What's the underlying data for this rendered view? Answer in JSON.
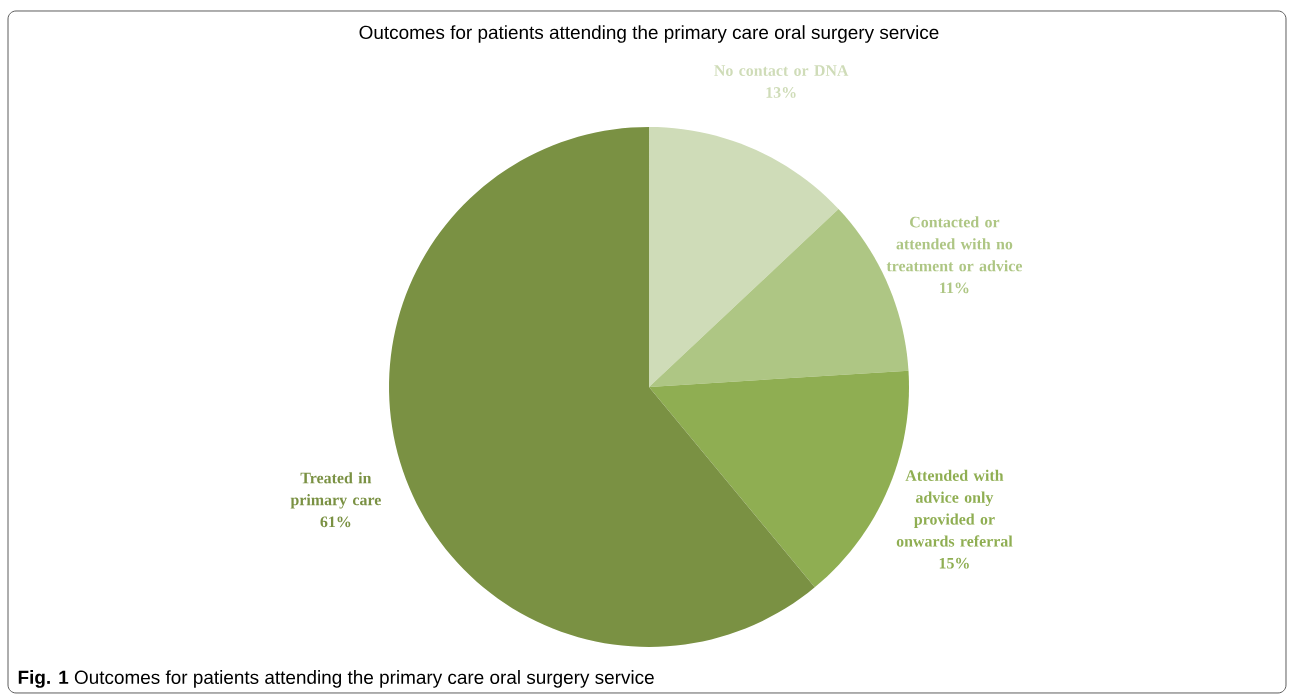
{
  "chart_data": {
    "type": "pie",
    "title": "Outcomes for patients attending the primary care oral surgery service",
    "categories": [
      "No contact or DNA",
      "Contacted or attended with no treatment or advice",
      "Attended with advice only provided or onwards referral",
      "Treated in primary care"
    ],
    "values": [
      13,
      11,
      15,
      61
    ],
    "value_labels": [
      "13%",
      "11%",
      "15%",
      "61%"
    ],
    "colors": [
      "#cfdcb8",
      "#aec684",
      "#8fae52",
      "#7a9143"
    ],
    "annotations": [
      "**Fig. 1** Outcomes for patients attending the primary care oral surgery service"
    ]
  }
}
